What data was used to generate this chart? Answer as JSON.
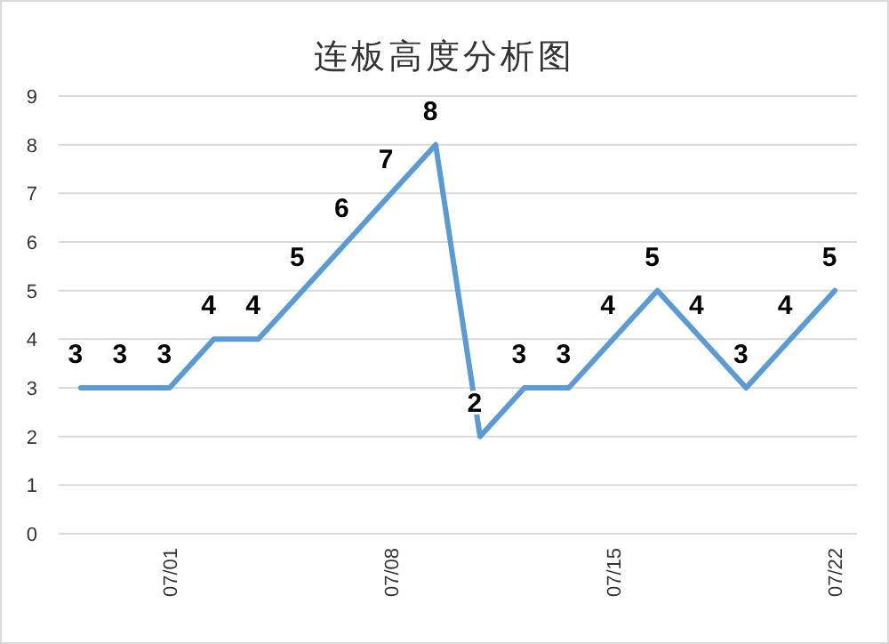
{
  "chart_data": {
    "type": "line",
    "title": "连板高度分析图",
    "categories": [
      null,
      null,
      "07/01",
      null,
      null,
      null,
      null,
      "07/08",
      null,
      null,
      null,
      null,
      "07/15",
      null,
      null,
      null,
      null,
      "07/22"
    ],
    "series": [
      {
        "color": "#5b9bd5",
        "values": [
          3,
          3,
          3,
          4,
          4,
          5,
          6,
          7,
          8,
          2,
          3,
          3,
          4,
          5,
          4,
          3,
          4,
          5
        ]
      }
    ],
    "ylim": [
      0,
      9
    ],
    "yticks": [
      0,
      1,
      2,
      3,
      4,
      5,
      6,
      7,
      8,
      9
    ],
    "grid": "y",
    "data_labels": true,
    "marker": "none",
    "line_style": "solid"
  }
}
